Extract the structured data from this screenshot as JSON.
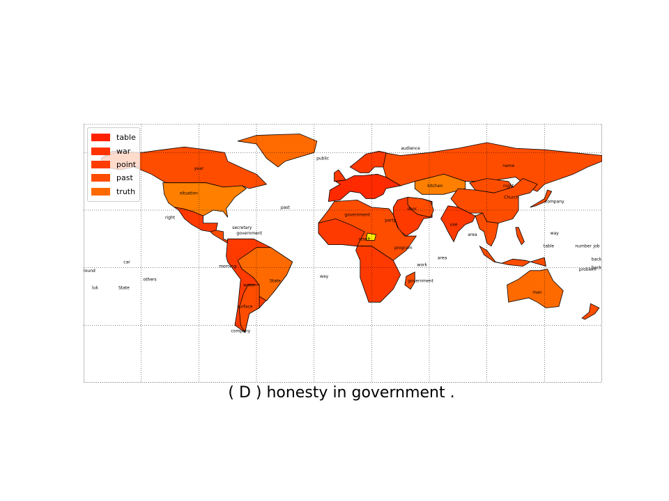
{
  "caption": "( D ) honesty in government .",
  "legend": [
    {
      "label": "table",
      "color": "#ff2200"
    },
    {
      "label": "war",
      "color": "#ff3300"
    },
    {
      "label": "point",
      "color": "#ff3c00"
    },
    {
      "label": "past",
      "color": "#ff4c00"
    },
    {
      "label": "truth",
      "color": "#ff6a00"
    }
  ],
  "colors": {
    "dark_red": "#ff2a00",
    "red": "#ff3a00",
    "orange_red": "#ff4d00",
    "orange": "#ff6a00",
    "light_orange": "#ff8000",
    "yellow": "#ffee00"
  },
  "place_labels": [
    {
      "text": "audience",
      "lon": 47,
      "lat": 72
    },
    {
      "text": "year",
      "lon": -100,
      "lat": 58
    },
    {
      "text": "situation",
      "lon": -107,
      "lat": 41
    },
    {
      "text": "past",
      "lon": -40,
      "lat": 31
    },
    {
      "text": "right",
      "lon": -120,
      "lat": 24
    },
    {
      "text": "secretary",
      "lon": -70,
      "lat": 17
    },
    {
      "text": "government",
      "lon": -65,
      "lat": 13
    },
    {
      "text": "car",
      "lon": -150,
      "lat": -7
    },
    {
      "text": "morning",
      "lon": -80,
      "lat": -10
    },
    {
      "text": "water",
      "lon": -65,
      "lat": -23
    },
    {
      "text": "State",
      "lon": -47,
      "lat": -20
    },
    {
      "text": "surface",
      "lon": -68,
      "lat": -38
    },
    {
      "text": "company",
      "lon": -71,
      "lat": -55
    },
    {
      "text": "ground",
      "lon": -177,
      "lat": -13
    },
    {
      "text": "others",
      "lon": -134,
      "lat": -19
    },
    {
      "text": "luk",
      "lon": -172,
      "lat": -25
    },
    {
      "text": "State",
      "lon": -152,
      "lat": -25
    },
    {
      "text": "way",
      "lon": -13,
      "lat": -17
    },
    {
      "text": "public",
      "lon": -14,
      "lat": 65
    },
    {
      "text": "name",
      "lon": 115,
      "lat": 60
    },
    {
      "text": "kitchen",
      "lon": 64,
      "lat": 46
    },
    {
      "text": "night",
      "lon": 115,
      "lat": 46
    },
    {
      "text": "Church",
      "lon": 117,
      "lat": 38
    },
    {
      "text": "company",
      "lon": 147,
      "lat": 35
    },
    {
      "text": "door",
      "lon": 48,
      "lat": 30
    },
    {
      "text": "party",
      "lon": 33,
      "lat": 22
    },
    {
      "text": "government",
      "lon": 10,
      "lat": 26
    },
    {
      "text": "use",
      "lon": 77,
      "lat": 19
    },
    {
      "text": "area",
      "lon": 90,
      "lat": 12
    },
    {
      "text": "result",
      "lon": 15,
      "lat": 9
    },
    {
      "text": "program",
      "lon": 42,
      "lat": 3
    },
    {
      "text": "area",
      "lon": 69,
      "lat": -4
    },
    {
      "text": "work",
      "lon": 55,
      "lat": -9
    },
    {
      "text": "government",
      "lon": 54,
      "lat": -20
    },
    {
      "text": "table",
      "lon": 143,
      "lat": 4
    },
    {
      "text": "number",
      "lon": 167,
      "lat": 4
    },
    {
      "text": "job",
      "lon": 180,
      "lat": 4
    },
    {
      "text": "back",
      "lon": 179,
      "lat": -5
    },
    {
      "text": "back",
      "lon": 200,
      "lat": -11
    },
    {
      "text": "problem",
      "lon": 170,
      "lat": -12
    },
    {
      "text": "man",
      "lon": 135,
      "lat": -28
    },
    {
      "text": "way",
      "lon": 147,
      "lat": 13
    }
  ]
}
